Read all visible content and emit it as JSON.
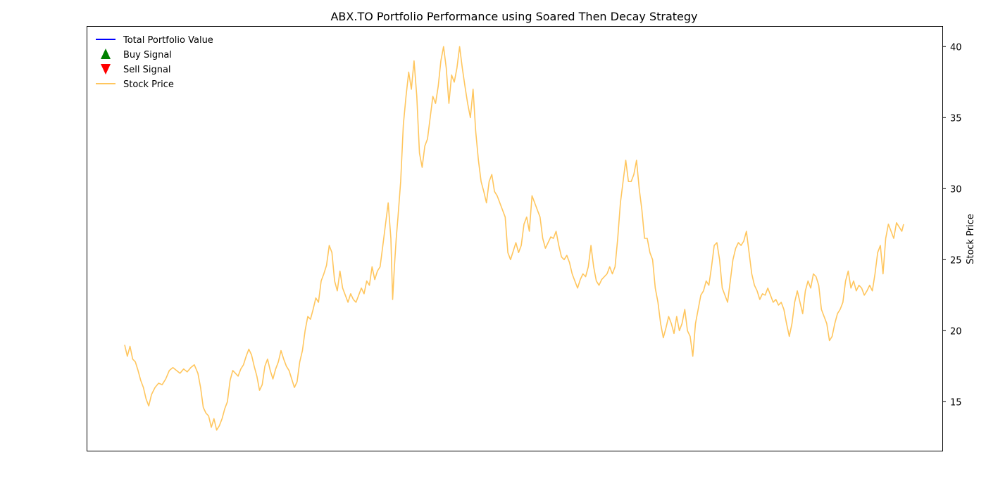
{
  "chart_data": {
    "type": "line",
    "title": "ABX.TO Portfolio Performance using Soared Then Decay Strategy",
    "xlabel": "",
    "ylabel_right": "Stock Price",
    "ylim": [
      11.55,
      41.4
    ],
    "yticks": [
      15,
      20,
      25,
      30,
      35,
      40
    ],
    "xaxis_visible": false,
    "grid": false,
    "legend_placement": "top-left",
    "legend": [
      {
        "label": "Total Portfolio Value",
        "marker": "line",
        "color": "#0000ff"
      },
      {
        "label": "Buy Signal",
        "marker": "triangle-up",
        "color": "#008000"
      },
      {
        "label": "Sell Signal",
        "marker": "triangle-down",
        "color": "#ff0000"
      },
      {
        "label": "Stock Price",
        "marker": "line",
        "color": "#ffc65e"
      }
    ],
    "series": [
      {
        "name": "Stock Price",
        "color": "#ffc65e",
        "points": [
          [
            0,
            19.0
          ],
          [
            1.5,
            18.2
          ],
          [
            3,
            18.9
          ],
          [
            4.5,
            18.0
          ],
          [
            6,
            17.8
          ],
          [
            7.5,
            17.2
          ],
          [
            9,
            16.5
          ],
          [
            10.5,
            16.0
          ],
          [
            12,
            15.2
          ],
          [
            13.5,
            14.7
          ],
          [
            15,
            15.5
          ],
          [
            17,
            16.0
          ],
          [
            19,
            16.3
          ],
          [
            21,
            16.2
          ],
          [
            23,
            16.6
          ],
          [
            25,
            17.2
          ],
          [
            27,
            17.4
          ],
          [
            29,
            17.2
          ],
          [
            31,
            17.0
          ],
          [
            33,
            17.3
          ],
          [
            35,
            17.1
          ],
          [
            37,
            17.4
          ],
          [
            39,
            17.6
          ],
          [
            41,
            17.0
          ],
          [
            42.5,
            16.0
          ],
          [
            44,
            14.6
          ],
          [
            45.5,
            14.2
          ],
          [
            47,
            14.0
          ],
          [
            48.5,
            13.2
          ],
          [
            50,
            13.8
          ],
          [
            51.5,
            13.0
          ],
          [
            53,
            13.3
          ],
          [
            54.5,
            13.8
          ],
          [
            56,
            14.5
          ],
          [
            57.5,
            15.0
          ],
          [
            59,
            16.5
          ],
          [
            60.5,
            17.2
          ],
          [
            62,
            17.0
          ],
          [
            63.5,
            16.8
          ],
          [
            65,
            17.3
          ],
          [
            66.5,
            17.6
          ],
          [
            68,
            18.2
          ],
          [
            69.5,
            18.7
          ],
          [
            71,
            18.3
          ],
          [
            72.5,
            17.5
          ],
          [
            74,
            16.8
          ],
          [
            75.5,
            15.8
          ],
          [
            77,
            16.2
          ],
          [
            78.5,
            17.5
          ],
          [
            80,
            18.0
          ],
          [
            81.5,
            17.2
          ],
          [
            83,
            16.6
          ],
          [
            84.5,
            17.3
          ],
          [
            86,
            17.8
          ],
          [
            87.5,
            18.6
          ],
          [
            89,
            18.0
          ],
          [
            90.5,
            17.5
          ],
          [
            92,
            17.2
          ],
          [
            93.5,
            16.6
          ],
          [
            95,
            16.0
          ],
          [
            96.5,
            16.4
          ],
          [
            98,
            17.8
          ],
          [
            99.5,
            18.6
          ],
          [
            101,
            20.0
          ],
          [
            102.5,
            21.0
          ],
          [
            104,
            20.8
          ],
          [
            105.5,
            21.5
          ],
          [
            107,
            22.3
          ],
          [
            108.5,
            22.0
          ],
          [
            110,
            23.5
          ],
          [
            111.5,
            24.0
          ],
          [
            113,
            24.6
          ],
          [
            114.5,
            26.0
          ],
          [
            116,
            25.5
          ],
          [
            117.5,
            23.5
          ],
          [
            119,
            22.8
          ],
          [
            120.5,
            24.2
          ],
          [
            122,
            23.0
          ],
          [
            123.5,
            22.5
          ],
          [
            125,
            22.0
          ],
          [
            126.5,
            22.6
          ],
          [
            128,
            22.2
          ],
          [
            129.5,
            22.0
          ],
          [
            131,
            22.5
          ],
          [
            132.5,
            23.0
          ],
          [
            134,
            22.6
          ],
          [
            135.5,
            23.5
          ],
          [
            137,
            23.2
          ],
          [
            138.5,
            24.5
          ],
          [
            140,
            23.6
          ],
          [
            141.5,
            24.2
          ],
          [
            143,
            24.5
          ],
          [
            144.5,
            26.0
          ],
          [
            146,
            27.5
          ],
          [
            147.5,
            29.0
          ],
          [
            149,
            26.5
          ],
          [
            150,
            22.2
          ],
          [
            151,
            24.5
          ],
          [
            152,
            26.5
          ],
          [
            153,
            28.0
          ],
          [
            154.5,
            30.5
          ],
          [
            156,
            34.5
          ],
          [
            157.5,
            36.5
          ],
          [
            159,
            38.2
          ],
          [
            160.5,
            37.0
          ],
          [
            162,
            39.0
          ],
          [
            163.5,
            36.5
          ],
          [
            165,
            32.5
          ],
          [
            166.5,
            31.5
          ],
          [
            168,
            33.0
          ],
          [
            169.5,
            33.5
          ],
          [
            171,
            35.0
          ],
          [
            172.5,
            36.5
          ],
          [
            174,
            36.0
          ],
          [
            175.5,
            37.2
          ],
          [
            177,
            39.0
          ],
          [
            178.5,
            40.0
          ],
          [
            180,
            38.5
          ],
          [
            181.5,
            36.0
          ],
          [
            183,
            38.0
          ],
          [
            184.5,
            37.5
          ],
          [
            186,
            38.5
          ],
          [
            187.5,
            40.0
          ],
          [
            189,
            38.5
          ],
          [
            190.5,
            37.2
          ],
          [
            192,
            36.0
          ],
          [
            193.5,
            35.0
          ],
          [
            195,
            37.0
          ],
          [
            196.5,
            34.0
          ],
          [
            198,
            32.0
          ],
          [
            199.5,
            30.5
          ],
          [
            201,
            29.8
          ],
          [
            202.5,
            29.0
          ],
          [
            204,
            30.5
          ],
          [
            205.5,
            31.0
          ],
          [
            207,
            29.8
          ],
          [
            208.5,
            29.5
          ],
          [
            210,
            29.0
          ],
          [
            211.5,
            28.5
          ],
          [
            213,
            28.0
          ],
          [
            214.5,
            25.5
          ],
          [
            216,
            25.0
          ],
          [
            217.5,
            25.6
          ],
          [
            219,
            26.2
          ],
          [
            220.5,
            25.5
          ],
          [
            222,
            26.0
          ],
          [
            223.5,
            27.5
          ],
          [
            225,
            28.0
          ],
          [
            226.5,
            27.0
          ],
          [
            228,
            29.5
          ],
          [
            229.5,
            29.0
          ],
          [
            231,
            28.5
          ],
          [
            232.5,
            28.0
          ],
          [
            234,
            26.5
          ],
          [
            235.5,
            25.8
          ],
          [
            237,
            26.2
          ],
          [
            238.5,
            26.6
          ],
          [
            240,
            26.5
          ],
          [
            241.5,
            27.0
          ],
          [
            243,
            26.0
          ],
          [
            244.5,
            25.2
          ],
          [
            246,
            25.0
          ],
          [
            247.5,
            25.3
          ],
          [
            249,
            24.8
          ],
          [
            250.5,
            24.0
          ],
          [
            252,
            23.5
          ],
          [
            253.5,
            23.0
          ],
          [
            255,
            23.6
          ],
          [
            256.5,
            24.0
          ],
          [
            258,
            23.8
          ],
          [
            259.5,
            24.5
          ],
          [
            261,
            26.0
          ],
          [
            262.5,
            24.5
          ],
          [
            264,
            23.5
          ],
          [
            265.5,
            23.2
          ],
          [
            267,
            23.6
          ],
          [
            268.5,
            23.8
          ],
          [
            270,
            24.0
          ],
          [
            271.5,
            24.5
          ],
          [
            273,
            24.0
          ],
          [
            274.5,
            24.5
          ],
          [
            276,
            26.5
          ],
          [
            277.5,
            29.0
          ],
          [
            279,
            30.5
          ],
          [
            280.5,
            32.0
          ],
          [
            282,
            30.5
          ],
          [
            283.5,
            30.5
          ],
          [
            285,
            31.0
          ],
          [
            286.5,
            32.0
          ],
          [
            288,
            30.0
          ],
          [
            289.5,
            28.5
          ],
          [
            291,
            26.5
          ],
          [
            292.5,
            26.5
          ],
          [
            294,
            25.5
          ],
          [
            295.5,
            25.0
          ],
          [
            297,
            23.0
          ],
          [
            298.5,
            22.0
          ],
          [
            300,
            20.5
          ],
          [
            301.5,
            19.5
          ],
          [
            303,
            20.2
          ],
          [
            304.5,
            21.0
          ],
          [
            306,
            20.5
          ],
          [
            307.5,
            19.8
          ],
          [
            309,
            21.0
          ],
          [
            310.5,
            20.0
          ],
          [
            312,
            20.5
          ],
          [
            313.5,
            21.5
          ],
          [
            315,
            20.0
          ],
          [
            316.5,
            19.6
          ],
          [
            318,
            18.2
          ],
          [
            319.5,
            20.5
          ],
          [
            321,
            21.5
          ],
          [
            322.5,
            22.5
          ],
          [
            324,
            22.8
          ],
          [
            325.5,
            23.5
          ],
          [
            327,
            23.2
          ],
          [
            328.5,
            24.5
          ],
          [
            330,
            26.0
          ],
          [
            331.5,
            26.2
          ],
          [
            333,
            25.0
          ],
          [
            334.5,
            23.0
          ],
          [
            336,
            22.5
          ],
          [
            337.5,
            22.0
          ],
          [
            339,
            23.5
          ],
          [
            340.5,
            25.0
          ],
          [
            342,
            25.8
          ],
          [
            343.5,
            26.2
          ],
          [
            345,
            26.0
          ],
          [
            346.5,
            26.3
          ],
          [
            348,
            27.0
          ],
          [
            349.5,
            25.5
          ],
          [
            351,
            24.0
          ],
          [
            352.5,
            23.2
          ],
          [
            354,
            22.8
          ],
          [
            355.5,
            22.2
          ],
          [
            357,
            22.6
          ],
          [
            358.5,
            22.5
          ],
          [
            360,
            23.0
          ],
          [
            361.5,
            22.5
          ],
          [
            363,
            22.0
          ],
          [
            364.5,
            22.2
          ],
          [
            366,
            21.8
          ],
          [
            367.5,
            22.0
          ],
          [
            369,
            21.5
          ],
          [
            370.5,
            20.5
          ],
          [
            372,
            19.6
          ],
          [
            373.5,
            20.5
          ],
          [
            375,
            22.0
          ],
          [
            376.5,
            22.8
          ],
          [
            378,
            22.0
          ],
          [
            379.5,
            21.2
          ],
          [
            381,
            22.8
          ],
          [
            382.5,
            23.5
          ],
          [
            384,
            23.0
          ],
          [
            385.5,
            24.0
          ],
          [
            387,
            23.8
          ],
          [
            388.5,
            23.2
          ],
          [
            390,
            21.5
          ],
          [
            391.5,
            21.0
          ],
          [
            393,
            20.5
          ],
          [
            394.5,
            19.3
          ],
          [
            396,
            19.6
          ],
          [
            397.5,
            20.5
          ],
          [
            399,
            21.2
          ],
          [
            400.5,
            21.5
          ],
          [
            402,
            22.0
          ],
          [
            403.5,
            23.5
          ],
          [
            405,
            24.2
          ],
          [
            406.5,
            23.0
          ],
          [
            408,
            23.5
          ],
          [
            409.5,
            22.8
          ],
          [
            411,
            23.2
          ],
          [
            412.5,
            23.0
          ],
          [
            414,
            22.5
          ],
          [
            415.5,
            22.8
          ],
          [
            417,
            23.2
          ],
          [
            418.5,
            22.8
          ],
          [
            420,
            24.0
          ],
          [
            421.5,
            25.5
          ],
          [
            423,
            26.0
          ],
          [
            424.5,
            24.0
          ],
          [
            426,
            26.5
          ],
          [
            427.5,
            27.5
          ],
          [
            429,
            27.0
          ],
          [
            430.5,
            26.5
          ],
          [
            432,
            27.6
          ],
          [
            433.5,
            27.3
          ],
          [
            435,
            27.0
          ],
          [
            436,
            27.5
          ]
        ]
      }
    ]
  }
}
